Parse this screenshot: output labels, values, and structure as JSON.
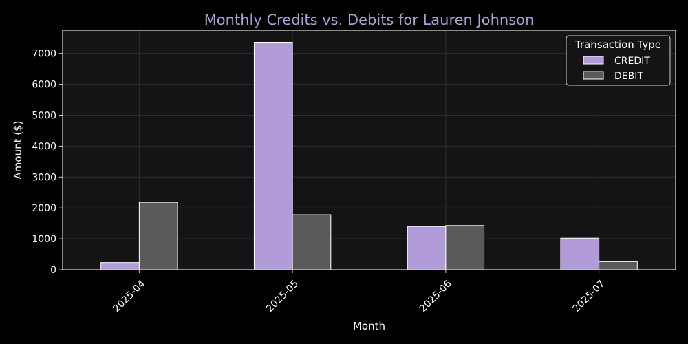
{
  "chart_data": {
    "type": "bar",
    "title": "Monthly Credits vs. Debits for Lauren Johnson",
    "xlabel": "Month",
    "ylabel": "Amount ($)",
    "categories": [
      "2025-04",
      "2025-05",
      "2025-06",
      "2025-07"
    ],
    "series": [
      {
        "name": "CREDIT",
        "values": [
          230,
          7360,
          1400,
          1020
        ],
        "color": "#b19cd9"
      },
      {
        "name": "DEBIT",
        "values": [
          2180,
          1780,
          1430,
          260
        ],
        "color": "#5a5a5a"
      }
    ],
    "ylim": [
      0,
      7750
    ],
    "yticks": [
      0,
      1000,
      2000,
      3000,
      4000,
      5000,
      6000,
      7000
    ],
    "grid": true,
    "legend": {
      "title": "Transaction Type",
      "placement": "top-right"
    },
    "colors": {
      "background": "#000000",
      "plot_background": "#141414",
      "grid": "#2e2e2e",
      "axis": "#cfcfcf",
      "title": "#b19cd9",
      "bar_edge": "#ffffff"
    }
  }
}
